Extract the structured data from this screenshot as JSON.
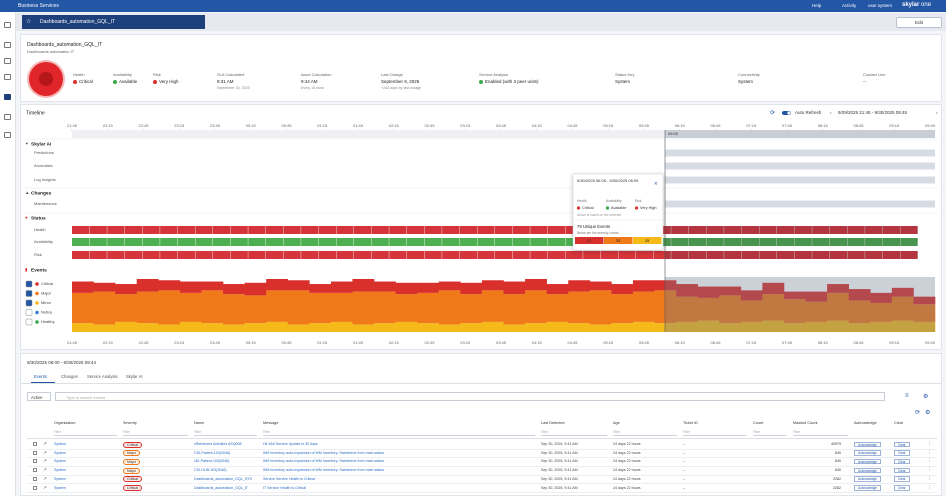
{
  "nav": {
    "title": "Business Services",
    "help": "Help",
    "activity": "Activity",
    "user": "user.system",
    "brand": "skylar",
    "brand2": "one"
  },
  "tab": {
    "title": "Dashboards_automation_GQL_IT",
    "edit": "Edit"
  },
  "header": {
    "title": "Dashboards_automation_GQL_IT",
    "subtitle": "Dashboards automation IT",
    "fields": [
      {
        "label": "Health",
        "value": "Critical",
        "dot": "#d9302c"
      },
      {
        "label": "Availability",
        "value": "Available",
        "dot": "#3aa84a"
      },
      {
        "label": "Risk",
        "value": "Very High",
        "dot": "#d9302c"
      },
      {
        "label": "SLA Calculated",
        "value": "9:31 AM",
        "note": "September 30, 2025"
      },
      {
        "label": "Issue Calculation",
        "value": "9:44 AM",
        "note": "Every 15 mins"
      },
      {
        "label": "Last Outage",
        "value": "September 9, 2025",
        "note": "+244 days by last outage"
      },
      {
        "label": "Service Analysis",
        "value": "Enabled (with 3 peer units)",
        "dot": "#3aa84a"
      },
      {
        "label": "Status Key",
        "value": "System"
      },
      {
        "label": "Connectivity",
        "value": "System"
      },
      {
        "label": "Contact Line",
        "value": "--"
      }
    ]
  },
  "timeline": {
    "title": "Timeline",
    "auto_refresh": "Auto Refresh",
    "range": "9/29/2025 21:45 - 9/30/2025 09:45",
    "selection_label": "06:00",
    "ticks": [
      "21:45",
      "22:15",
      "22:45",
      "23:15",
      "23:45",
      "00:15",
      "00:45",
      "01:15",
      "01:45",
      "02:15",
      "02:45",
      "03:15",
      "03:45",
      "04:15",
      "04:45",
      "05:15",
      "05:45",
      "06:15",
      "06:45",
      "07:15",
      "07:45",
      "08:15",
      "08:45",
      "09:15",
      "09:45"
    ],
    "groups": [
      {
        "title": "Skylar AI",
        "rows": [
          "Predictions",
          "Anomalies",
          "Log Insights"
        ]
      },
      {
        "title": "Changes",
        "rows": [
          "Maintenance"
        ]
      },
      {
        "title": "Status",
        "rows": [
          "Health",
          "Availability",
          "Risk"
        ]
      }
    ],
    "events": {
      "title": "Events",
      "legend": [
        {
          "label": "Critical",
          "color": "#d9302c",
          "checked": true
        },
        {
          "label": "Major",
          "color": "#f07a1a",
          "checked": true
        },
        {
          "label": "Minor",
          "color": "#f5b919",
          "checked": true
        },
        {
          "label": "Notice",
          "color": "#3a7bd5",
          "checked": false
        },
        {
          "label": "Healthy",
          "color": "#3aa84a",
          "checked": false
        }
      ],
      "critical": [
        9,
        7,
        8,
        10,
        8,
        9,
        7,
        8,
        10,
        9,
        8,
        7,
        9,
        10,
        8,
        9,
        8,
        7,
        9,
        8,
        10,
        9,
        8,
        9,
        7,
        8,
        9,
        8,
        10,
        9,
        7,
        8,
        9,
        6,
        8,
        7,
        9,
        8,
        7,
        6
      ],
      "major": [
        24,
        26,
        22,
        25,
        27,
        23,
        26,
        24,
        22,
        25,
        27,
        24,
        23,
        26,
        25,
        22,
        24,
        27,
        23,
        25,
        24,
        26,
        22,
        25,
        27,
        23,
        24,
        26,
        20,
        18,
        22,
        17,
        21,
        19,
        16,
        22,
        18,
        15,
        19,
        14
      ],
      "minor": [
        7,
        6,
        8,
        7,
        6,
        8,
        7,
        6,
        7,
        8,
        6,
        7,
        8,
        6,
        7,
        8,
        7,
        6,
        7,
        8,
        6,
        7,
        8,
        7,
        6,
        7,
        8,
        7,
        8,
        9,
        7,
        8,
        9,
        7,
        8,
        9,
        7,
        8,
        9,
        8
      ]
    }
  },
  "tooltip": {
    "range": "9/30/2025 06:06 - 9/30/2025 06:09",
    "fields": [
      {
        "label": "Health",
        "value": "Critical",
        "dot": "#d9302c"
      },
      {
        "label": "Availability",
        "value": "Available",
        "dot": "#3aa84a"
      },
      {
        "label": "Risk",
        "value": "Very High",
        "dot": "#d9302c"
      }
    ],
    "note": "Above is based on the selected",
    "events_title": "79 Unique Events",
    "events_note": "Below are the severity counts",
    "counts": [
      {
        "value": 21,
        "color": "#d9302c"
      },
      {
        "value": 33,
        "color": "#f07a1a"
      },
      {
        "value": 25,
        "color": "#f5b919"
      }
    ]
  },
  "details": {
    "range": "9/30/2025 06:00 - 9/30/2025 09:44",
    "tabs": [
      "Events",
      "Changes",
      "Service Analysis",
      "Skylar AI"
    ],
    "filter": "Active",
    "search": "Type to search events",
    "filter_placeholder": "Filter",
    "ack": "Acknowledge",
    "clear": "Clear",
    "columns": [
      "Organization",
      "Severity",
      "Name",
      "Message",
      "Last Detected",
      "Age",
      "Ticket ID",
      "Count",
      "Masked Count",
      "Acknowledge",
      "Clear"
    ],
    "rows": [
      [
        "System",
        "Critical",
        "vRetrievers Activities ASQ008",
        "Hit 3A5 Service Update in 30 days",
        "Sep 30, 2025, 9:41 AM",
        "24 days 22 hours",
        "--",
        "",
        "40979"
      ],
      [
        "System",
        "Major",
        "CDI-Patient-103(3046)",
        "WM inventory auto-expansion of WM inventory: Salesforce from main status",
        "Sep 30, 2025, 9:41 AM",
        "24 days 22 hours",
        "--",
        "",
        "640"
      ],
      [
        "System",
        "Major",
        "vDI-Patient-103(3046)",
        "WM inventory auto-expansion of WM inventory: Salesforce from main status",
        "Sep 30, 2025, 9:41 AM",
        "24 days 22 hours",
        "--",
        "",
        "640"
      ],
      [
        "System",
        "Major",
        "CDI-HUB-103(3046)",
        "WM inventory auto-expansion of WM inventory: Salesforce from main status",
        "Sep 30, 2025, 9:41 AM",
        "24 days 22 hours",
        "--",
        "",
        "640"
      ],
      [
        "System",
        "Critical",
        "Dashboards_automation_GQL_SYS",
        "Service Service Health is Critical",
        "Sep 30, 2025, 9:41 AM",
        "24 days 22 hours",
        "--",
        "",
        "2282"
      ],
      [
        "System",
        "Critical",
        "Dashboards_automation_GQL_IT",
        "IT Service Health is Critical",
        "Sep 30, 2025, 9:41 AM",
        "24 days 22 hours",
        "--",
        "",
        "2282"
      ]
    ]
  }
}
